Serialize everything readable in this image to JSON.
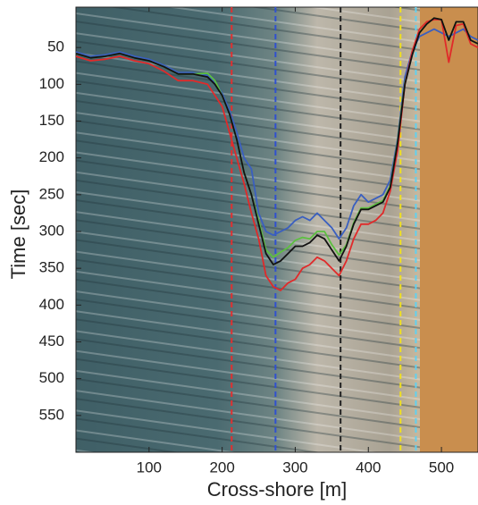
{
  "chart_data": {
    "type": "line",
    "x_label": "Cross-shore [m]",
    "y_label": "Time [sec]",
    "xlim": [
      0,
      550
    ],
    "ylim": [
      0,
      600
    ],
    "y_inverted": true,
    "xticks": [
      100,
      200,
      300,
      400,
      500
    ],
    "yticks": [
      50,
      100,
      150,
      200,
      250,
      300,
      350,
      400,
      450,
      500,
      550
    ],
    "x": [
      0,
      20,
      40,
      60,
      80,
      100,
      120,
      140,
      160,
      180,
      190,
      200,
      210,
      220,
      230,
      240,
      250,
      260,
      270,
      280,
      290,
      300,
      310,
      320,
      330,
      340,
      350,
      360,
      370,
      380,
      390,
      400,
      410,
      420,
      430,
      440,
      450,
      460,
      470,
      480,
      490,
      500,
      510,
      520,
      530,
      540,
      550
    ],
    "series": [
      {
        "color": "#3a5fc0",
        "values": [
          56,
          62,
          60,
          56,
          62,
          66,
          74,
          84,
          84,
          88,
          98,
          112,
          135,
          165,
          200,
          215,
          275,
          300,
          305,
          300,
          295,
          285,
          280,
          285,
          275,
          285,
          295,
          310,
          295,
          265,
          250,
          260,
          255,
          250,
          230,
          175,
          90,
          55,
          35,
          30,
          25,
          30,
          35,
          30,
          25,
          35,
          40
        ]
      },
      {
        "color": "#5cc040",
        "values": [
          58,
          64,
          62,
          58,
          64,
          68,
          76,
          86,
          86,
          85,
          95,
          115,
          140,
          175,
          220,
          250,
          285,
          325,
          335,
          328,
          322,
          312,
          308,
          310,
          300,
          300,
          318,
          332,
          318,
          288,
          268,
          268,
          263,
          258,
          238,
          178,
          98,
          58,
          30,
          18,
          10,
          12,
          40,
          15,
          15,
          40,
          45
        ]
      },
      {
        "color": "#e02a2a",
        "values": [
          62,
          68,
          66,
          62,
          68,
          72,
          82,
          95,
          95,
          100,
          115,
          130,
          165,
          200,
          235,
          275,
          310,
          360,
          375,
          380,
          370,
          365,
          350,
          345,
          335,
          340,
          350,
          360,
          340,
          310,
          290,
          290,
          285,
          275,
          245,
          190,
          100,
          55,
          25,
          15,
          12,
          12,
          70,
          20,
          18,
          45,
          50
        ]
      },
      {
        "color": "#111111",
        "values": [
          58,
          64,
          62,
          58,
          64,
          68,
          76,
          86,
          86,
          90,
          100,
          115,
          140,
          175,
          220,
          250,
          290,
          330,
          345,
          340,
          330,
          320,
          320,
          315,
          305,
          310,
          325,
          340,
          320,
          290,
          270,
          270,
          265,
          260,
          240,
          180,
          100,
          60,
          30,
          18,
          10,
          12,
          40,
          15,
          15,
          40,
          45
        ]
      }
    ],
    "vlines": [
      {
        "x": 213,
        "color": "#e03030"
      },
      {
        "x": 273,
        "color": "#3050d0"
      },
      {
        "x": 362,
        "color": "#222222"
      },
      {
        "x": 444,
        "color": "#f0e020"
      },
      {
        "x": 465,
        "color": "#60d0f0"
      }
    ]
  }
}
